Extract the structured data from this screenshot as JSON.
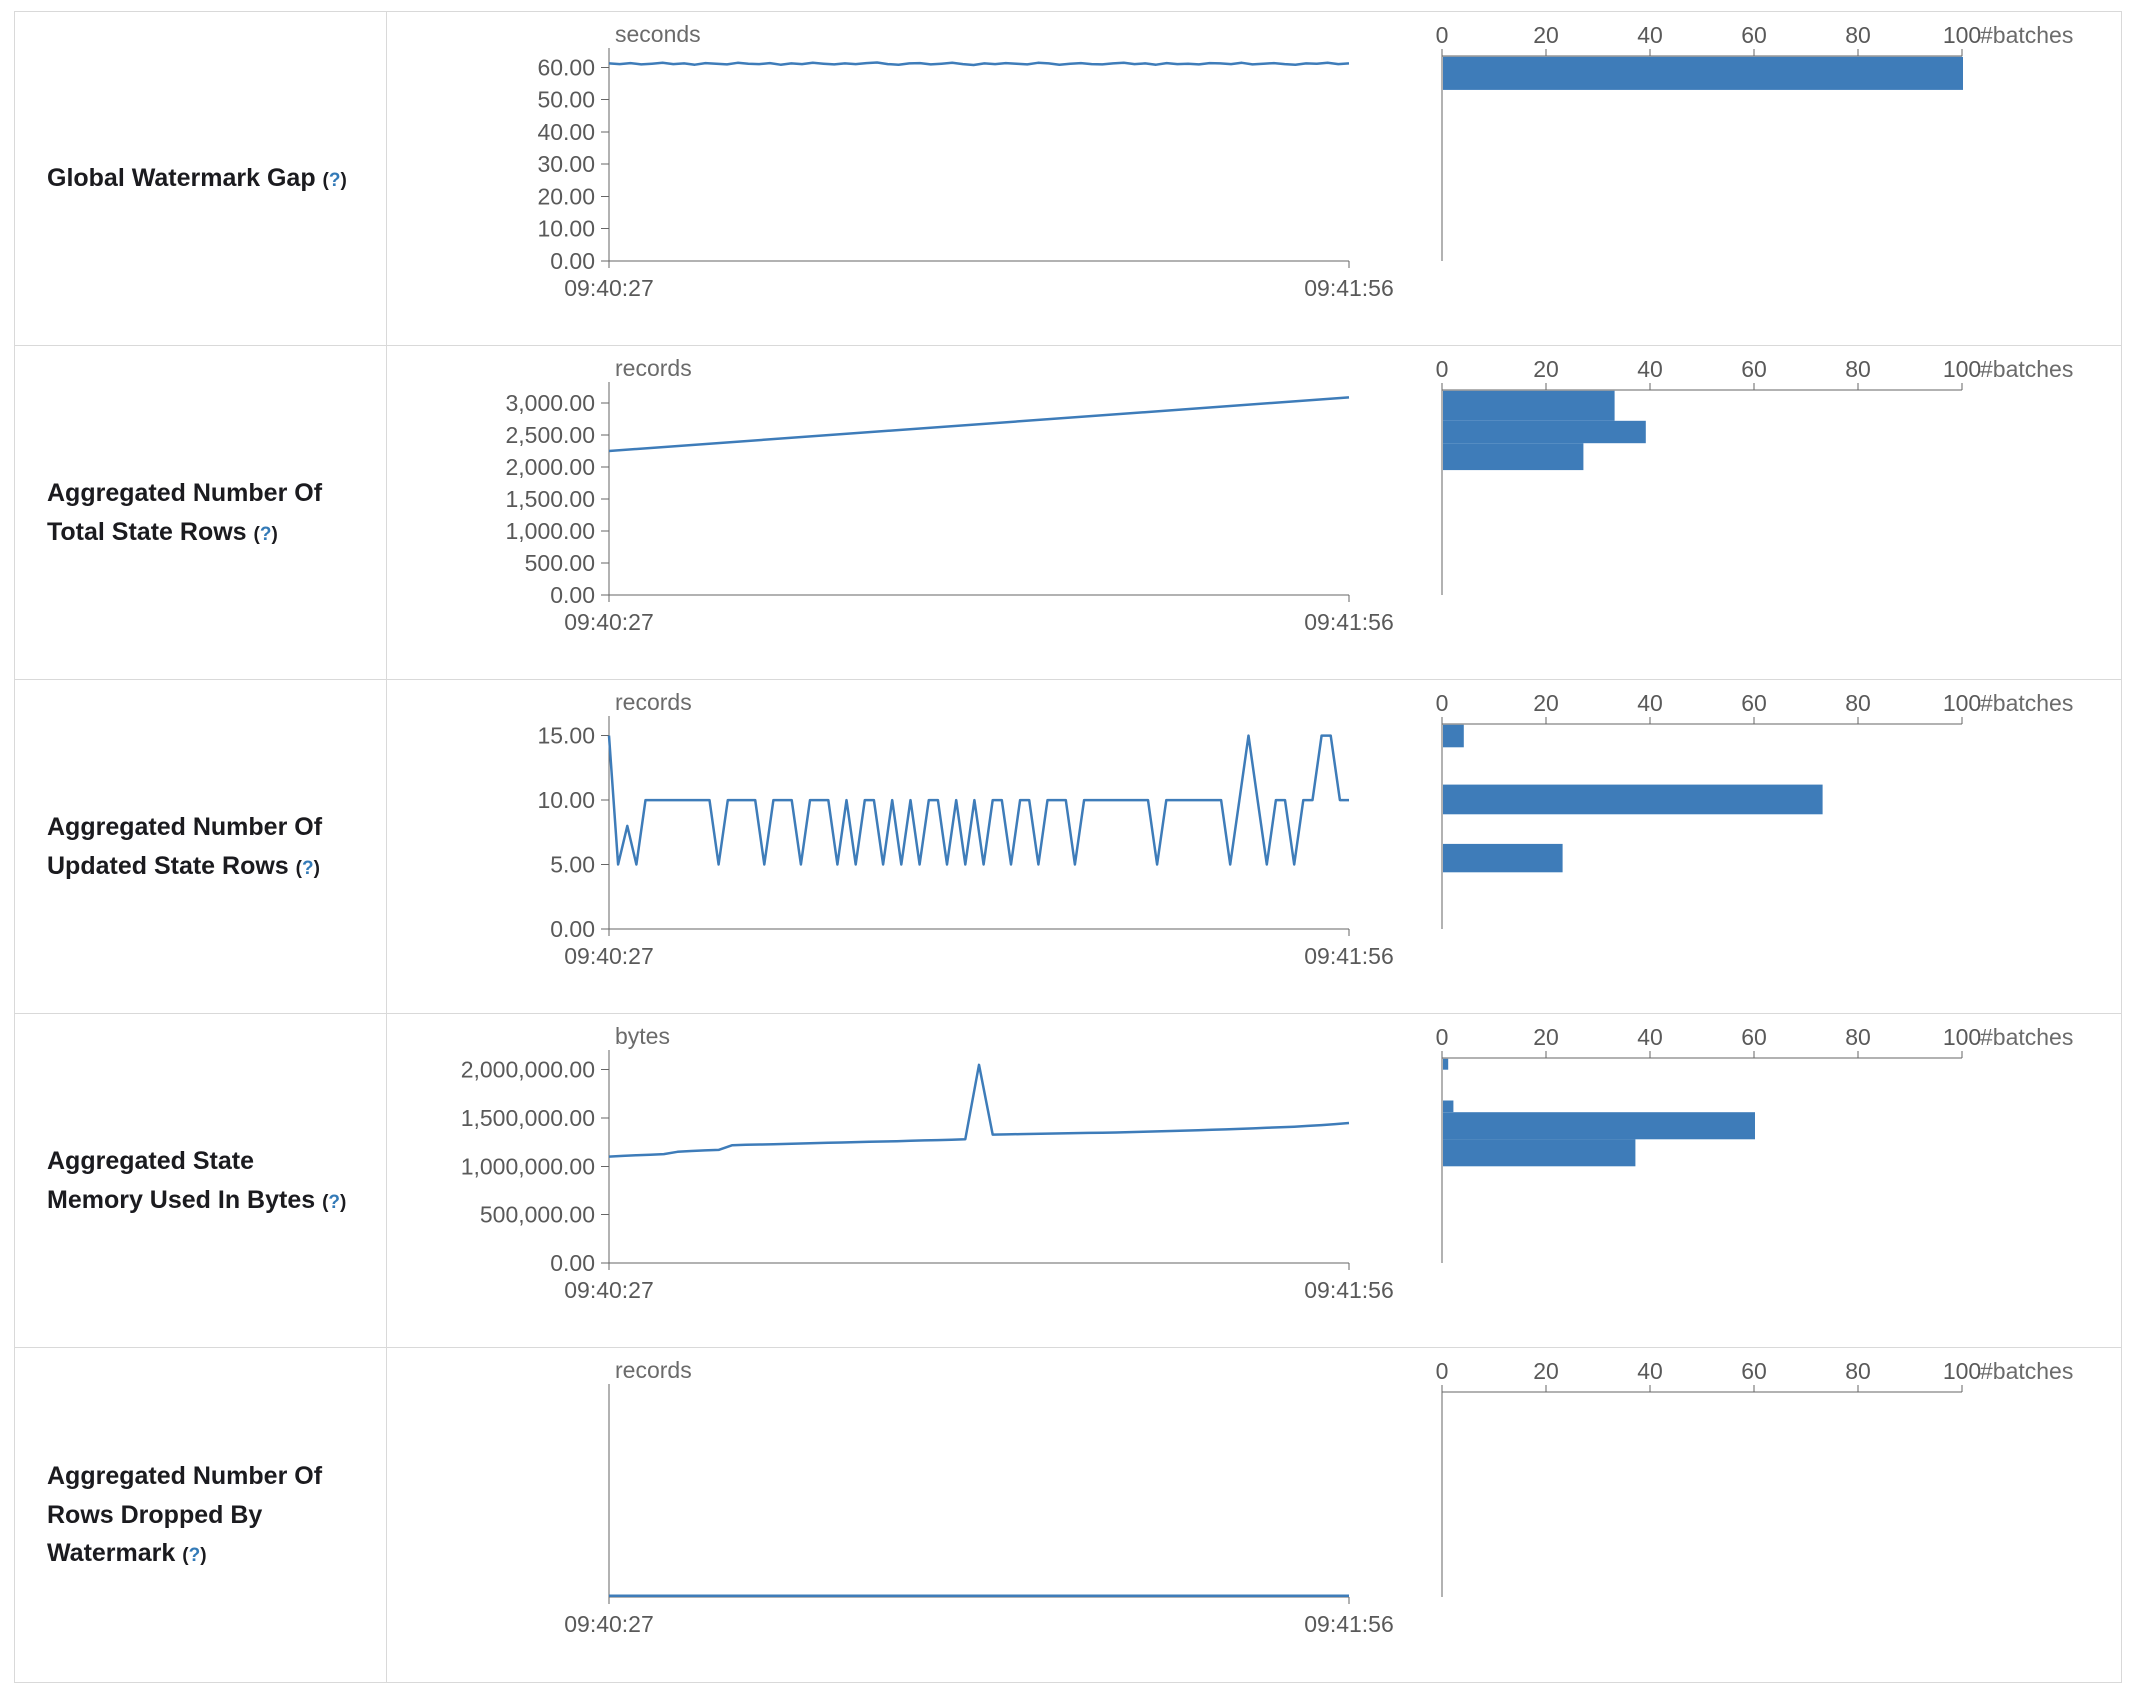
{
  "page": {
    "time_axis": {
      "start_label": "09:40:27",
      "end_label": "09:41:56"
    },
    "batches_axis": {
      "label": "#batches",
      "tick_labels": [
        "0",
        "20",
        "40",
        "60",
        "80",
        "100"
      ],
      "tick_values": [
        0,
        20,
        40,
        60,
        80,
        100
      ],
      "max": 100
    }
  },
  "colors": {
    "series": "#3e7cb9",
    "axis": "#666666",
    "tick_text": "#595959",
    "label_text": "#1b1b1f",
    "help_link": "#337ab7",
    "border": "#d9d9d9"
  },
  "chart_data": [
    {
      "metric": "Global Watermark Gap",
      "help": "?",
      "timeline": {
        "type": "line",
        "unit": "seconds",
        "x_start": "09:40:27",
        "x_end": "09:41:56",
        "ylim": [
          0,
          63.5
        ],
        "yticks": [
          {
            "v": 60,
            "label": "60.00"
          },
          {
            "v": 50,
            "label": "50.00"
          },
          {
            "v": 40,
            "label": "40.00"
          },
          {
            "v": 30,
            "label": "30.00"
          },
          {
            "v": 20,
            "label": "20.00"
          },
          {
            "v": 10,
            "label": "10.00"
          },
          {
            "v": 0,
            "label": "0.00"
          }
        ],
        "values": [
          61.2,
          61.0,
          61.3,
          60.9,
          61.1,
          61.4,
          61.0,
          61.2,
          60.8,
          61.3,
          61.1,
          60.9,
          61.4,
          61.1,
          61.0,
          61.3,
          60.8,
          61.2,
          61.0,
          61.4,
          61.1,
          60.9,
          61.2,
          61.0,
          61.3,
          61.5,
          61.0,
          60.8,
          61.2,
          61.3,
          60.9,
          61.1,
          61.4,
          61.0,
          60.7,
          61.2,
          61.0,
          61.3,
          61.1,
          60.9,
          61.4,
          61.2,
          60.8,
          61.1,
          61.3,
          61.0,
          60.9,
          61.2,
          61.4,
          61.0,
          61.2,
          60.8,
          61.3,
          61.0,
          61.1,
          60.9,
          61.3,
          61.2,
          61.0,
          61.4,
          60.9,
          61.1,
          61.3,
          61.0,
          60.8,
          61.2,
          61.1,
          61.4,
          61.0,
          61.2
        ]
      },
      "histogram": {
        "type": "bar",
        "xlabel": "#batches",
        "xlim": [
          0,
          100
        ],
        "bins": [
          {
            "from": 53.0,
            "to": 63.5,
            "count": 100
          }
        ]
      }
    },
    {
      "metric": "Aggregated Number Of Total State Rows",
      "help": "?",
      "timeline": {
        "type": "line",
        "unit": "records",
        "x_start": "09:40:27",
        "x_end": "09:41:56",
        "ylim": [
          0,
          3200
        ],
        "yticks": [
          {
            "v": 3000,
            "label": "3,000.00"
          },
          {
            "v": 2500,
            "label": "2,500.00"
          },
          {
            "v": 2000,
            "label": "2,000.00"
          },
          {
            "v": 1500,
            "label": "1,500.00"
          },
          {
            "v": 1000,
            "label": "1,000.00"
          },
          {
            "v": 500,
            "label": "500.00"
          },
          {
            "v": 0,
            "label": "0.00"
          }
        ],
        "values": [
          2248,
          3085
        ]
      },
      "histogram": {
        "type": "bar",
        "xlabel": "#batches",
        "xlim": [
          0,
          100
        ],
        "bins": [
          {
            "from": 2720,
            "to": 3200,
            "count": 33
          },
          {
            "from": 2370,
            "to": 2720,
            "count": 39
          },
          {
            "from": 1950,
            "to": 2370,
            "count": 27
          }
        ]
      }
    },
    {
      "metric": "Aggregated Number Of Updated State Rows",
      "help": "?",
      "timeline": {
        "type": "line",
        "unit": "records",
        "x_start": "09:40:27",
        "x_end": "09:41:56",
        "ylim": [
          0,
          15.9
        ],
        "yticks": [
          {
            "v": 15,
            "label": "15.00"
          },
          {
            "v": 10,
            "label": "10.00"
          },
          {
            "v": 5,
            "label": "5.00"
          },
          {
            "v": 0,
            "label": "0.00"
          }
        ],
        "values": [
          15,
          5,
          8,
          5,
          10,
          10,
          10,
          10,
          10,
          10,
          10,
          10,
          5,
          10,
          10,
          10,
          10,
          5,
          10,
          10,
          10,
          5,
          10,
          10,
          10,
          5,
          10,
          5,
          10,
          10,
          5,
          10,
          5,
          10,
          5,
          10,
          10,
          5,
          10,
          5,
          10,
          5,
          10,
          10,
          5,
          10,
          10,
          5,
          10,
          10,
          10,
          5,
          10,
          10,
          10,
          10,
          10,
          10,
          10,
          10,
          5,
          10,
          10,
          10,
          10,
          10,
          10,
          10,
          5,
          10,
          15,
          10,
          5,
          10,
          10,
          5,
          10,
          10,
          15,
          15,
          10,
          10
        ]
      },
      "histogram": {
        "type": "bar",
        "xlabel": "#batches",
        "xlim": [
          0,
          100
        ],
        "bins": [
          {
            "from": 14.1,
            "to": 15.9,
            "count": 4
          },
          {
            "from": 8.9,
            "to": 11.2,
            "count": 73
          },
          {
            "from": 4.4,
            "to": 6.6,
            "count": 23
          }
        ]
      }
    },
    {
      "metric": "Aggregated State Memory Used In Bytes",
      "help": "?",
      "timeline": {
        "type": "line",
        "unit": "bytes",
        "x_start": "09:40:27",
        "x_end": "09:41:56",
        "ylim": [
          0,
          2120000
        ],
        "yticks": [
          {
            "v": 2000000,
            "label": "2,000,000.00"
          },
          {
            "v": 1500000,
            "label": "1,500,000.00"
          },
          {
            "v": 1000000,
            "label": "1,000,000.00"
          },
          {
            "v": 500000,
            "label": "500,000.00"
          },
          {
            "v": 0,
            "label": "0.00"
          }
        ],
        "values": [
          1100000,
          1108000,
          1115000,
          1120000,
          1126000,
          1150000,
          1158000,
          1164000,
          1170000,
          1218000,
          1222000,
          1225000,
          1228000,
          1232000,
          1236000,
          1240000,
          1243000,
          1246000,
          1250000,
          1253000,
          1256000,
          1260000,
          1264000,
          1268000,
          1271000,
          1275000,
          1280000,
          2050000,
          1328000,
          1330000,
          1333000,
          1335000,
          1338000,
          1340000,
          1343000,
          1345000,
          1348000,
          1350000,
          1354000,
          1358000,
          1361000,
          1365000,
          1369000,
          1373000,
          1377000,
          1382000,
          1387000,
          1392000,
          1398000,
          1404000,
          1410000,
          1418000,
          1426000,
          1436000,
          1448000
        ]
      },
      "histogram": {
        "type": "bar",
        "xlabel": "#batches",
        "xlim": [
          0,
          100
        ],
        "bins": [
          {
            "from": 2000000,
            "to": 2120000,
            "count": 1
          },
          {
            "from": 1560000,
            "to": 1680000,
            "count": 2
          },
          {
            "from": 1280000,
            "to": 1560000,
            "count": 60
          },
          {
            "from": 1000000,
            "to": 1280000,
            "count": 37
          }
        ]
      }
    },
    {
      "metric": "Aggregated Number Of Rows Dropped By Watermark",
      "help": "?",
      "timeline": {
        "type": "line",
        "unit": "records",
        "x_start": "09:40:27",
        "x_end": "09:41:56",
        "ylim": [
          0,
          1
        ],
        "yticks": [],
        "values": [
          0,
          0
        ]
      },
      "histogram": {
        "type": "bar",
        "xlabel": "#batches",
        "xlim": [
          0,
          100
        ],
        "bins": []
      }
    }
  ]
}
